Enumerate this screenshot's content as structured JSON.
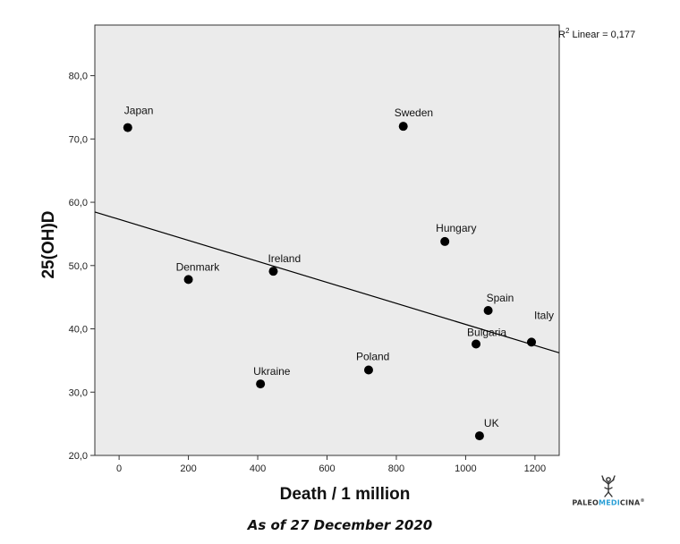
{
  "chart_data": {
    "type": "scatter",
    "title": "",
    "xlabel": "Death / 1 million",
    "ylabel": "25(OH)D",
    "xlim": [
      -70,
      1270
    ],
    "ylim": [
      20,
      88
    ],
    "x_ticks": [
      0,
      200,
      400,
      600,
      800,
      1000,
      1200
    ],
    "x_tick_labels": [
      "0",
      "200",
      "400",
      "600",
      "800",
      "1000",
      "1200"
    ],
    "y_ticks": [
      20,
      30,
      40,
      50,
      60,
      70,
      80
    ],
    "y_tick_labels": [
      "20,0",
      "30,0",
      "40,0",
      "50,0",
      "60,0",
      "70,0",
      "80,0"
    ],
    "grid": false,
    "points": [
      {
        "label": "Japan",
        "x": 25,
        "y": 71.8
      },
      {
        "label": "Sweden",
        "x": 820,
        "y": 72.0
      },
      {
        "label": "Hungary",
        "x": 940,
        "y": 53.8
      },
      {
        "label": "Denmark",
        "x": 200,
        "y": 47.8
      },
      {
        "label": "Ireland",
        "x": 445,
        "y": 49.1
      },
      {
        "label": "Spain",
        "x": 1065,
        "y": 42.9
      },
      {
        "label": "Bulgaria",
        "x": 1030,
        "y": 37.6
      },
      {
        "label": "Italy",
        "x": 1190,
        "y": 37.9
      },
      {
        "label": "Poland",
        "x": 720,
        "y": 33.5
      },
      {
        "label": "Ukraine",
        "x": 408,
        "y": 31.3
      },
      {
        "label": "UK",
        "x": 1040,
        "y": 23.1
      }
    ],
    "fit_line": {
      "type": "linear",
      "label": "R² Linear = 0,177",
      "intercept": 57.3,
      "slope": -0.0166
    }
  },
  "caption": "As of 27 December 2020",
  "logo": {
    "pre": "PALEO",
    "mid": "MEDI",
    "post": "CINA",
    "mark": "®"
  },
  "colors": {
    "plot_bg": "#ebebeb",
    "point": "#000000",
    "line": "#000000",
    "logo_accent": "#2a9fd6"
  }
}
